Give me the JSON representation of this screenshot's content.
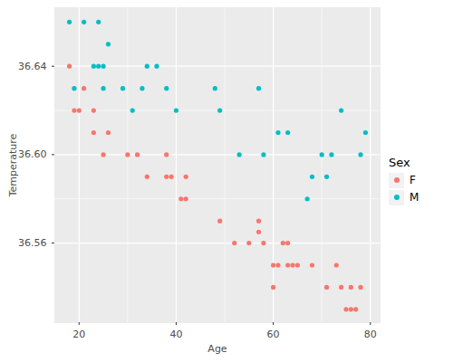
{
  "chart_data": {
    "type": "scatter",
    "x_label": "Age",
    "y_label": "Temperature",
    "legend": "right",
    "legend_title": "Sex",
    "grid": true,
    "xlim": [
      15,
      82
    ],
    "ylim": [
      36.524,
      36.6665
    ],
    "xticks": [
      20,
      40,
      60,
      80
    ],
    "yticks": [
      36.56,
      {
        "value": 36.6,
        "label": "36.60"
      },
      36.64
    ],
    "series": [
      {
        "name": "F",
        "color": "#F8766D",
        "x": [
          18,
          19,
          20,
          21,
          23,
          23,
          25,
          26,
          30,
          32,
          34,
          38,
          38,
          39,
          41,
          42,
          42,
          49,
          52,
          55,
          57,
          57,
          58,
          60,
          60,
          61,
          62,
          63,
          63,
          64,
          65,
          68,
          71,
          73,
          74,
          75,
          76,
          76,
          77,
          78
        ],
        "values": [
          36.64,
          36.62,
          36.62,
          36.63,
          36.62,
          36.61,
          36.6,
          36.61,
          36.6,
          36.6,
          36.59,
          36.6,
          36.59,
          36.59,
          36.58,
          36.58,
          36.59,
          36.57,
          36.56,
          36.56,
          36.57,
          36.565,
          36.56,
          36.55,
          36.54,
          36.55,
          36.56,
          36.56,
          36.55,
          36.55,
          36.55,
          36.55,
          36.54,
          36.55,
          36.54,
          36.53,
          36.53,
          36.54,
          36.53,
          36.54
        ]
      },
      {
        "name": "M",
        "color": "#00BFC4",
        "x": [
          18,
          19,
          21,
          23,
          24,
          24,
          25,
          25,
          26,
          29,
          31,
          33,
          34,
          36,
          38,
          40,
          48,
          49,
          53,
          57,
          58,
          61,
          63,
          67,
          68,
          70,
          71,
          72,
          74,
          78,
          79
        ],
        "values": [
          36.66,
          36.63,
          36.66,
          36.64,
          36.64,
          36.66,
          36.64,
          36.63,
          36.65,
          36.63,
          36.62,
          36.63,
          36.64,
          36.64,
          36.63,
          36.62,
          36.63,
          36.62,
          36.6,
          36.63,
          36.6,
          36.61,
          36.61,
          36.58,
          36.59,
          36.6,
          36.59,
          36.6,
          36.62,
          36.6,
          36.61
        ]
      }
    ]
  }
}
